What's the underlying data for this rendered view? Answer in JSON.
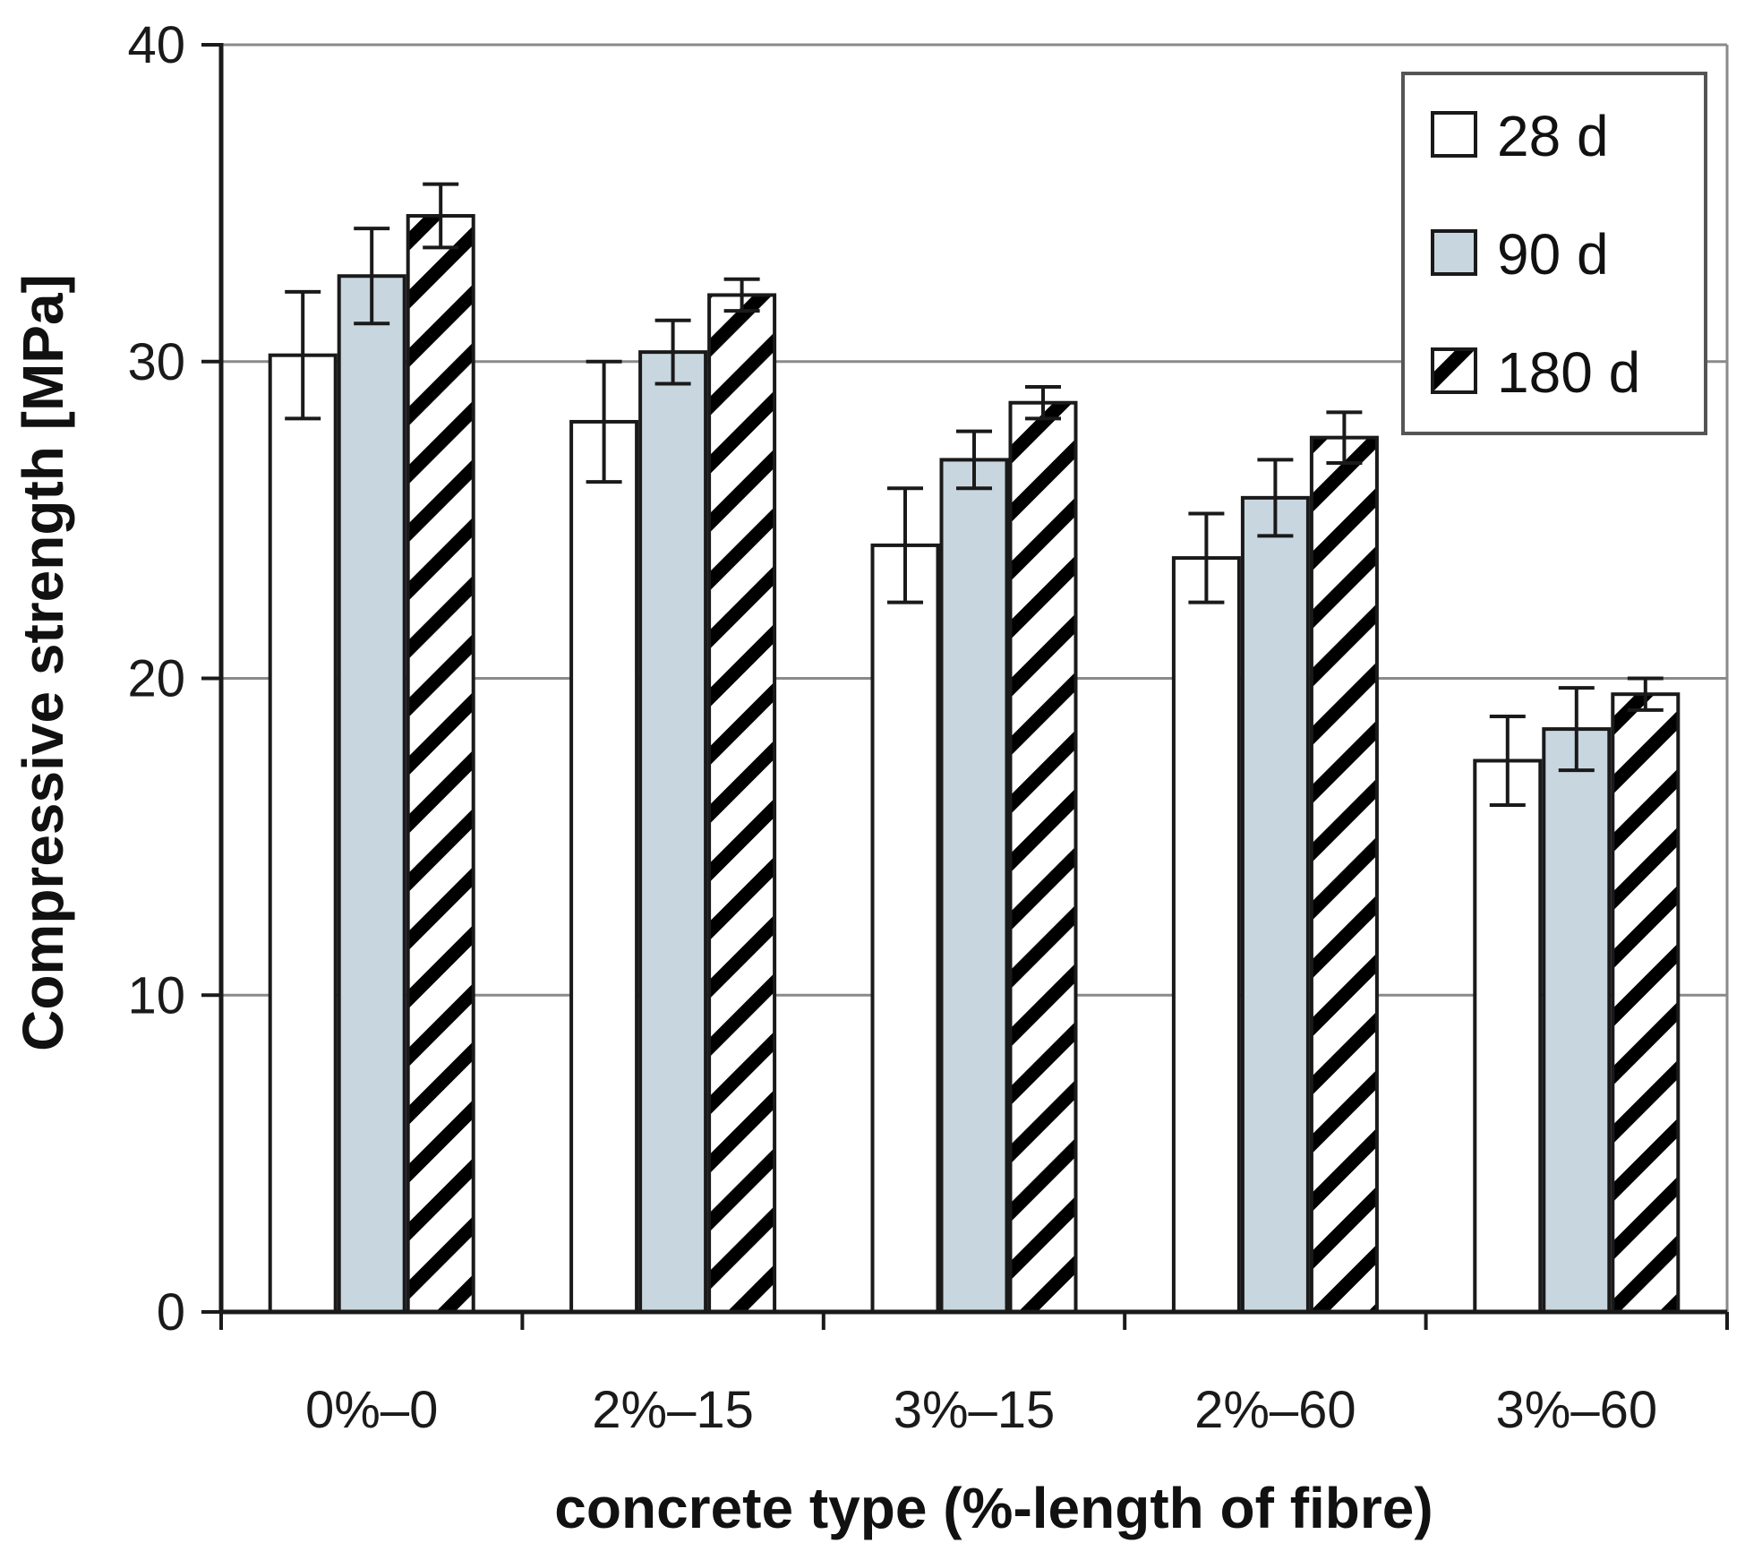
{
  "chart_data": {
    "type": "bar",
    "title": "",
    "xlabel": "concrete type (%-length of fibre)",
    "ylabel": "Compressive strength [MPa]",
    "ylim": [
      0,
      40
    ],
    "yticks": [
      0,
      10,
      20,
      30,
      40
    ],
    "grid": true,
    "legend_position": "top-right",
    "categories": [
      "0%–0",
      "2%–15",
      "3%–15",
      "2%–60",
      "3%–60"
    ],
    "series": [
      {
        "name": "28 d",
        "values": [
          30.2,
          28.1,
          24.2,
          23.8,
          17.4
        ],
        "errors": [
          2.0,
          1.9,
          1.8,
          1.4,
          1.4
        ],
        "fill": "white"
      },
      {
        "name": "90 d",
        "values": [
          32.7,
          30.3,
          26.9,
          25.7,
          18.4
        ],
        "errors": [
          1.5,
          1.0,
          0.9,
          1.2,
          1.3
        ],
        "fill": "light-blue"
      },
      {
        "name": "180 d",
        "values": [
          34.6,
          32.1,
          28.7,
          27.6,
          19.5
        ],
        "errors": [
          1.0,
          0.5,
          0.5,
          0.8,
          0.5
        ],
        "fill": "hatched"
      }
    ],
    "colors": {
      "outline": "#1a1a1a",
      "grid": "#8a8a8a",
      "series_90d": "#c8d6df",
      "hatch": "#000000"
    }
  }
}
